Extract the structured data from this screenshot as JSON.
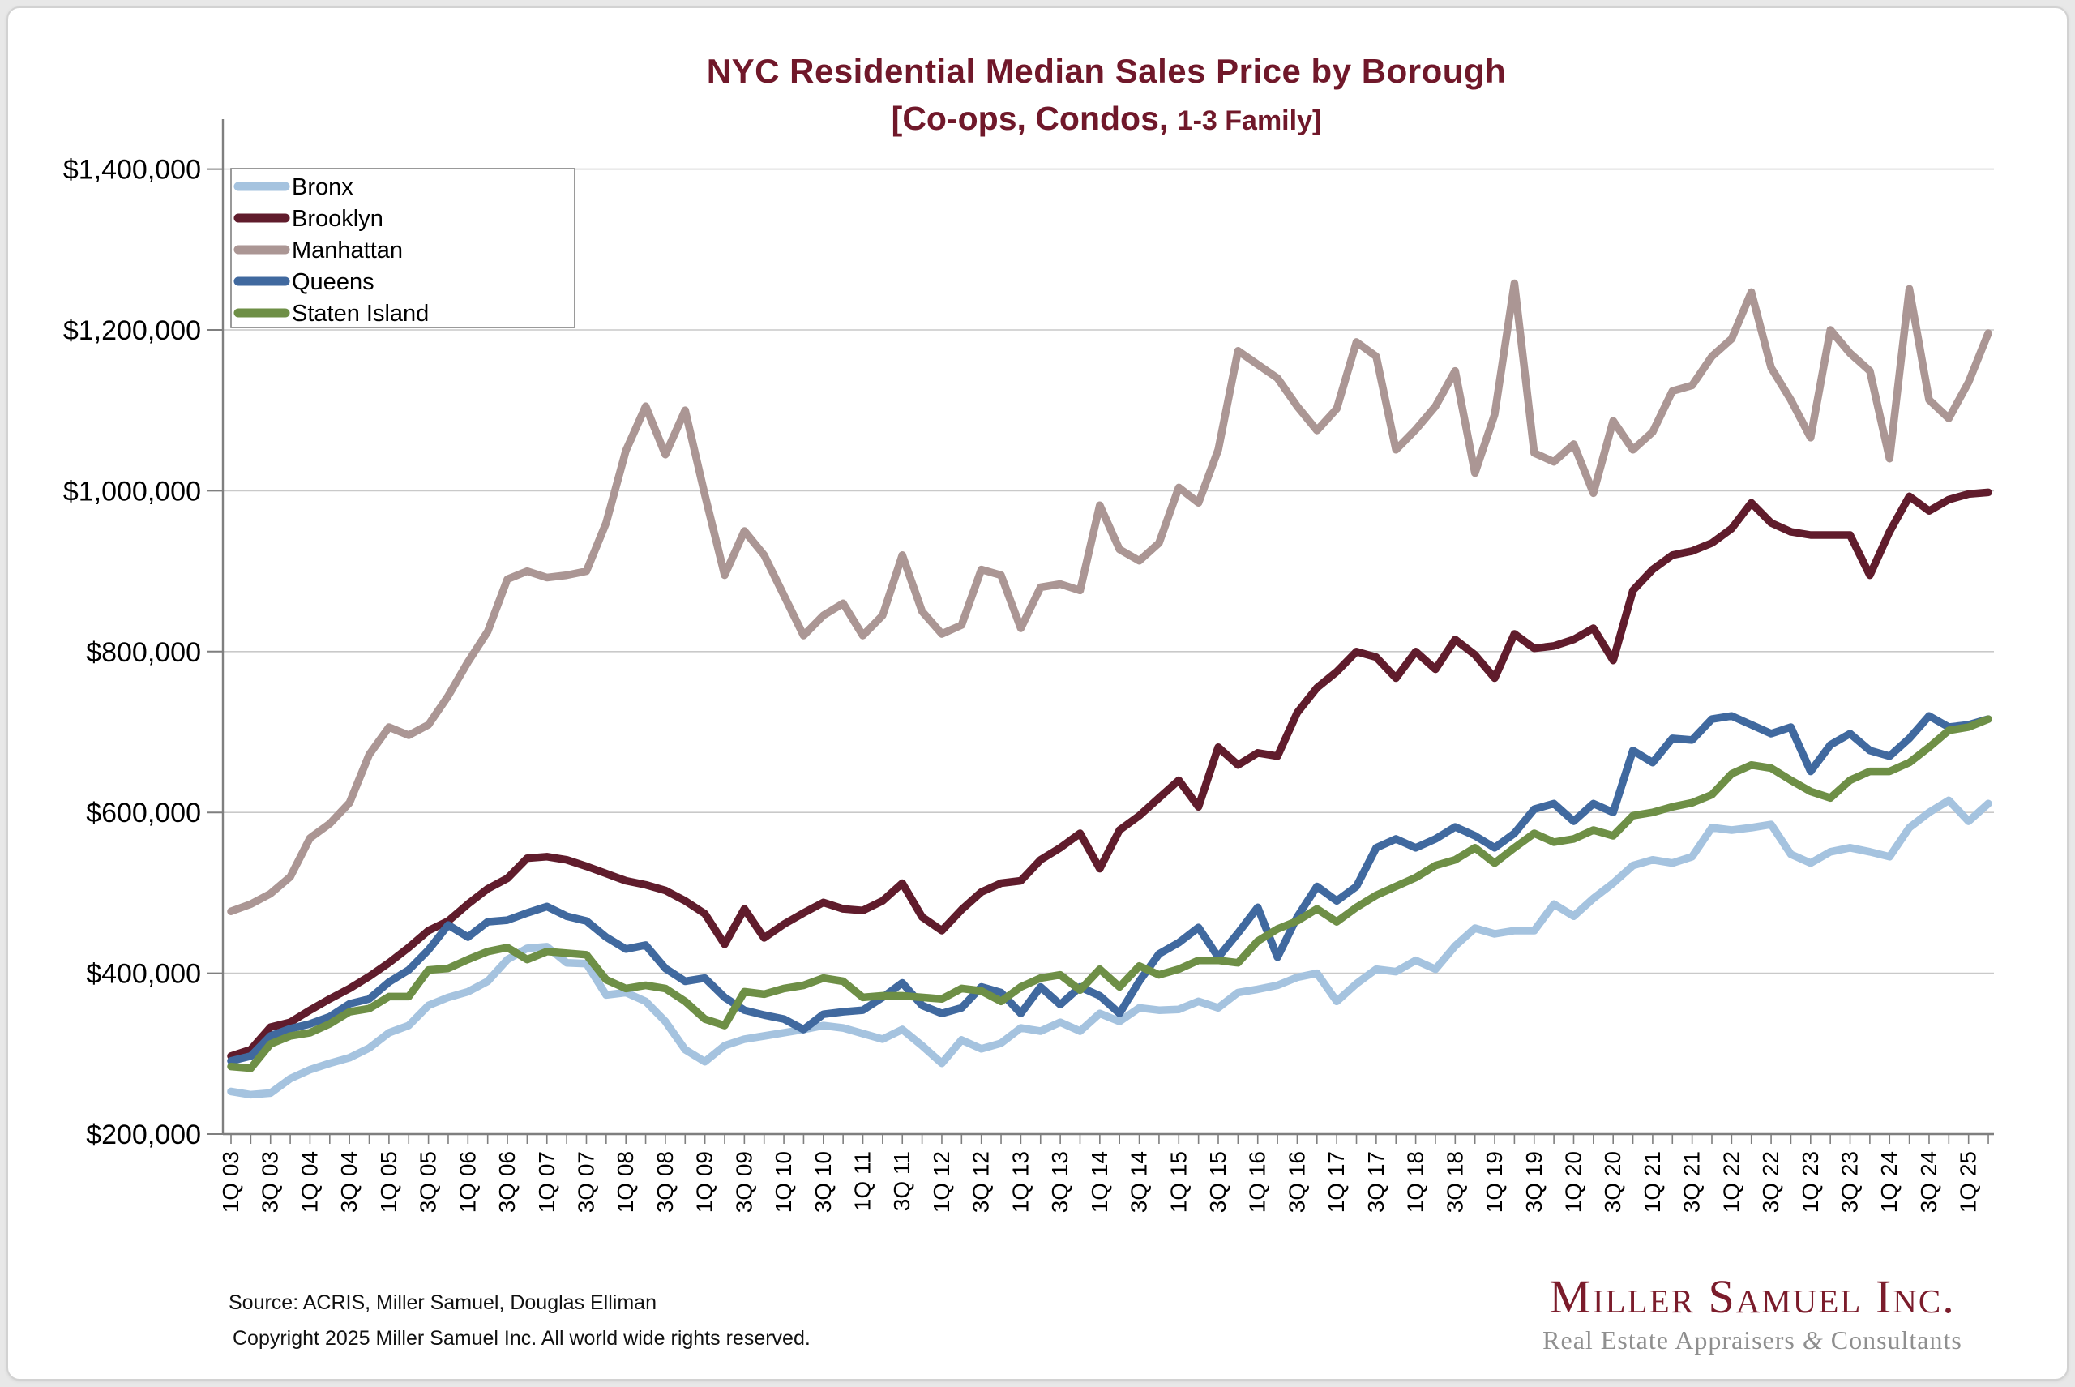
{
  "title": {
    "line1": "NYC Residential Median Sales Price by Borough",
    "line2_main": "[Co-ops, Condos, ",
    "line2_small": "1-3 Family]"
  },
  "footer": {
    "source": "Source: ACRIS, Miller Samuel, Douglas Elliman",
    "copyright": "Copyright 2025 Miller Samuel Inc.  All world wide rights reserved."
  },
  "logo": {
    "name": "Miller Samuel Inc.",
    "tagline_pre": "Real Estate Appraisers ",
    "tagline_amp": "&",
    "tagline_post": " Consultants"
  },
  "chart_data": {
    "type": "line",
    "grid": true,
    "legend_position": "top-left",
    "ylim": [
      200000,
      1400000
    ],
    "y_tick_step": 200000,
    "y_tick_labels": [
      "$200,000",
      "$400,000",
      "$600,000",
      "$800,000",
      "$1,000,000",
      "$1,200,000",
      "$1,400,000"
    ],
    "x_label_every": 2,
    "categories": [
      "1Q 03",
      "2Q 03",
      "3Q 03",
      "4Q 03",
      "1Q 04",
      "2Q 04",
      "3Q 04",
      "4Q 04",
      "1Q 05",
      "2Q 05",
      "3Q 05",
      "4Q 05",
      "1Q 06",
      "2Q 06",
      "3Q 06",
      "4Q 06",
      "1Q 07",
      "2Q 07",
      "3Q 07",
      "4Q 07",
      "1Q 08",
      "2Q 08",
      "3Q 08",
      "4Q 08",
      "1Q 09",
      "2Q 09",
      "3Q 09",
      "4Q 09",
      "1Q 10",
      "2Q 10",
      "3Q 10",
      "4Q 10",
      "1Q 11",
      "2Q 11",
      "3Q 11",
      "4Q 11",
      "1Q 12",
      "2Q 12",
      "3Q 12",
      "4Q 12",
      "1Q 13",
      "2Q 13",
      "3Q 13",
      "4Q 13",
      "1Q 14",
      "2Q 14",
      "3Q 14",
      "4Q 14",
      "1Q 15",
      "2Q 15",
      "3Q 15",
      "4Q 15",
      "1Q 16",
      "2Q 16",
      "3Q 16",
      "4Q 16",
      "1Q 17",
      "2Q 17",
      "3Q 17",
      "4Q 17",
      "1Q 18",
      "2Q 18",
      "3Q 18",
      "4Q 18",
      "1Q 19",
      "2Q 19",
      "3Q 19",
      "4Q 19",
      "1Q 20",
      "2Q 20",
      "3Q 20",
      "4Q 20",
      "1Q 21",
      "2Q 21",
      "3Q 21",
      "4Q 21",
      "1Q 22",
      "2Q 22",
      "3Q 22",
      "4Q 22",
      "1Q 23",
      "2Q 23",
      "3Q 23",
      "4Q 23",
      "1Q 24",
      "2Q 24",
      "3Q 24",
      "4Q 24",
      "1Q 25",
      "2Q 25"
    ],
    "series": [
      {
        "name": "Bronx",
        "color": "#a5c3df",
        "values": [
          253000,
          249000,
          251000,
          269000,
          280000,
          288000,
          295000,
          307000,
          326000,
          335000,
          360000,
          370000,
          377000,
          390000,
          417000,
          431000,
          433000,
          413000,
          412000,
          373000,
          376000,
          365000,
          340000,
          305000,
          290000,
          310000,
          318000,
          322000,
          326000,
          330000,
          335000,
          332000,
          325000,
          318000,
          330000,
          310000,
          288000,
          317000,
          306000,
          313000,
          332000,
          328000,
          339000,
          328000,
          350000,
          340000,
          357000,
          354000,
          355000,
          365000,
          357000,
          376000,
          380000,
          385000,
          395000,
          400000,
          365000,
          387000,
          405000,
          402000,
          416000,
          405000,
          434000,
          456000,
          449000,
          453000,
          453000,
          486000,
          471000,
          493000,
          512000,
          534000,
          541000,
          537000,
          545000,
          581000,
          578000,
          581000,
          585000,
          548000,
          537000,
          551000,
          556000,
          551000,
          545000,
          581000,
          600000,
          615000,
          589000,
          611000
        ]
      },
      {
        "name": "Brooklyn",
        "color": "#601c2c",
        "values": [
          297000,
          305000,
          333000,
          339000,
          354000,
          368000,
          381000,
          396000,
          413000,
          432000,
          453000,
          465000,
          486000,
          505000,
          518000,
          543000,
          545000,
          541000,
          533000,
          524000,
          515000,
          510000,
          503000,
          490000,
          474000,
          436000,
          480000,
          444000,
          461000,
          475000,
          488000,
          480000,
          478000,
          490000,
          512000,
          470000,
          453000,
          479000,
          501000,
          512000,
          515000,
          541000,
          556000,
          574000,
          530000,
          578000,
          596000,
          618000,
          640000,
          607000,
          681000,
          659000,
          674000,
          670000,
          724000,
          755000,
          775000,
          800000,
          793000,
          767000,
          800000,
          778000,
          815000,
          796000,
          767000,
          822000,
          804000,
          807000,
          815000,
          829000,
          789000,
          876000,
          902000,
          920000,
          925000,
          935000,
          953000,
          985000,
          960000,
          949000,
          945000,
          945000,
          945000,
          895000,
          949000,
          993000,
          975000,
          989000,
          996000,
          998000
        ]
      },
      {
        "name": "Manhattan",
        "color": "#ab9694",
        "values": [
          477000,
          486000,
          499000,
          520000,
          568000,
          586000,
          612000,
          672000,
          706000,
          696000,
          709000,
          745000,
          787000,
          825000,
          890000,
          900000,
          892000,
          895000,
          900000,
          960000,
          1050000,
          1105000,
          1045000,
          1100000,
          995000,
          895000,
          950000,
          920000,
          870000,
          820000,
          845000,
          860000,
          820000,
          845000,
          920000,
          850000,
          822000,
          833000,
          902000,
          895000,
          829000,
          880000,
          884000,
          876000,
          982000,
          927000,
          913000,
          935000,
          1004000,
          985000,
          1051000,
          1174000,
          1157000,
          1140000,
          1105000,
          1075000,
          1102000,
          1185000,
          1167000,
          1051000,
          1076000,
          1105000,
          1149000,
          1022000,
          1095000,
          1258000,
          1047000,
          1036000,
          1058000,
          997000,
          1087000,
          1051000,
          1073000,
          1124000,
          1131000,
          1167000,
          1189000,
          1247000,
          1153000,
          1113000,
          1066000,
          1200000,
          1171000,
          1149000,
          1040000,
          1251000,
          1113000,
          1090000,
          1135000,
          1196000
        ]
      },
      {
        "name": "Queens",
        "color": "#40699f",
        "values": [
          291000,
          297000,
          322000,
          331000,
          337000,
          346000,
          362000,
          368000,
          389000,
          404000,
          429000,
          460000,
          445000,
          464000,
          466000,
          475000,
          483000,
          471000,
          465000,
          445000,
          430000,
          435000,
          406000,
          390000,
          394000,
          370000,
          354000,
          348000,
          343000,
          330000,
          349000,
          352000,
          354000,
          370000,
          388000,
          360000,
          350000,
          357000,
          383000,
          376000,
          350000,
          383000,
          361000,
          383000,
          372000,
          350000,
          390000,
          424000,
          438000,
          457000,
          420000,
          450000,
          482000,
          420000,
          470000,
          508000,
          490000,
          508000,
          556000,
          567000,
          556000,
          567000,
          582000,
          571000,
          556000,
          574000,
          604000,
          611000,
          589000,
          611000,
          600000,
          677000,
          662000,
          692000,
          690000,
          716000,
          720000,
          709000,
          698000,
          706000,
          651000,
          684000,
          698000,
          677000,
          670000,
          692000,
          720000,
          706000,
          709000,
          716000
        ]
      },
      {
        "name": "Staten Island",
        "color": "#6e8f46",
        "values": [
          284000,
          282000,
          312000,
          322000,
          326000,
          337000,
          352000,
          356000,
          371000,
          371000,
          404000,
          406000,
          417000,
          427000,
          432000,
          417000,
          427000,
          425000,
          423000,
          392000,
          381000,
          385000,
          381000,
          365000,
          343000,
          335000,
          377000,
          374000,
          381000,
          385000,
          394000,
          390000,
          370000,
          372000,
          372000,
          370000,
          368000,
          381000,
          378000,
          365000,
          383000,
          394000,
          398000,
          379000,
          405000,
          383000,
          409000,
          398000,
          405000,
          416000,
          416000,
          413000,
          440000,
          455000,
          465000,
          480000,
          464000,
          482000,
          497000,
          508000,
          519000,
          534000,
          541000,
          556000,
          537000,
          556000,
          574000,
          563000,
          567000,
          578000,
          571000,
          596000,
          600000,
          607000,
          612000,
          622000,
          648000,
          659000,
          655000,
          640000,
          626000,
          618000,
          640000,
          651000,
          651000,
          662000,
          681000,
          702000,
          706000,
          716000
        ]
      }
    ]
  }
}
